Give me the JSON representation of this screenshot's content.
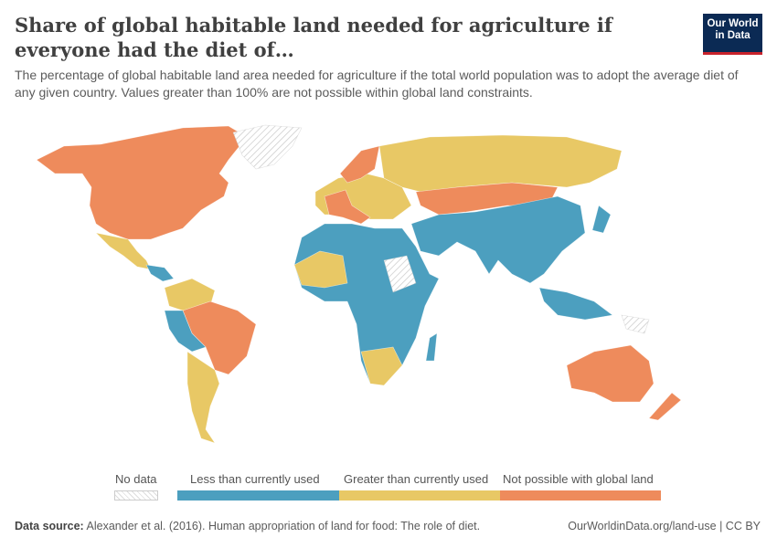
{
  "header": {
    "title": "Share of global habitable land needed for agriculture if everyone had the diet of…",
    "subtitle": "The percentage of global habitable land area needed for agriculture if the total world population was to adopt the average diet of any given country. Values greater than 100% are not possible within global land constraints.",
    "logo_line1": "Our World",
    "logo_line2": "in Data"
  },
  "colors": {
    "less": "#4c9fbf",
    "greater": "#e8c865",
    "not_possible": "#ee8b5c",
    "no_data": "hatched"
  },
  "legend": {
    "no_data": "No data",
    "items": [
      {
        "label": "Less than currently used",
        "color": "#4c9fbf"
      },
      {
        "label": "Greater than currently used",
        "color": "#e8c865"
      },
      {
        "label": "Not possible with global land",
        "color": "#ee8b5c"
      }
    ]
  },
  "footer": {
    "source_label": "Data source:",
    "source_text": "Alexander et al. (2016). Human appropriation of land for food: The role of diet.",
    "link": "OurWorldinData.org/land-use",
    "license": "CC BY"
  }
}
